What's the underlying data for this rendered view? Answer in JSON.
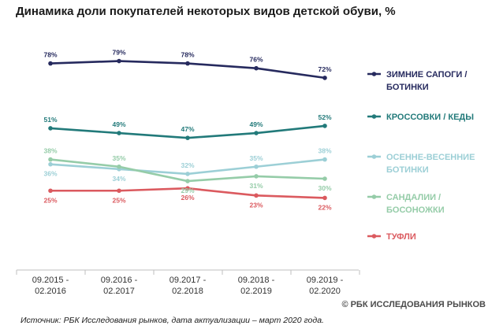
{
  "title": "Динамика доли покупателей некоторых видов детской обуви, %",
  "copyright": "© РБК ИССЛЕДОВАНИЯ РЫНКОВ",
  "source": "Источник: РБК Исследования рынков, дата актуализации – март 2020 года.",
  "chart_data": {
    "type": "line",
    "title": "Динамика доли покупателей некоторых видов детской обуви, %",
    "xlabel": "",
    "ylabel": "",
    "ylim": [
      0,
      100
    ],
    "grid": false,
    "legend_position": "right",
    "categories": [
      [
        "09.2015 -",
        "02.2016"
      ],
      [
        "09.2016 -",
        "02.2017"
      ],
      [
        "09.2017 -",
        "02.2018"
      ],
      [
        "09.2018 -",
        "02.2019"
      ],
      [
        "09.2019 -",
        "02.2020"
      ]
    ],
    "series": [
      {
        "name_lines": [
          "ЗИМНИЕ САПОГИ /",
          "БОТИНКИ"
        ],
        "color": "#262a5e",
        "values": [
          78,
          79,
          78,
          76,
          72
        ],
        "label_pos": [
          "above",
          "above",
          "above",
          "above",
          "above"
        ]
      },
      {
        "name_lines": [
          "КРОССОВКИ / КЕДЫ"
        ],
        "color": "#227a7a",
        "values": [
          51,
          49,
          47,
          49,
          52
        ],
        "label_pos": [
          "above",
          "above",
          "above",
          "above",
          "above"
        ]
      },
      {
        "name_lines": [
          "ОСЕННЕ-ВЕСЕННИЕ",
          "БОТИНКИ"
        ],
        "color": "#9ccfd6",
        "values": [
          36,
          34,
          32,
          35,
          38
        ],
        "label_pos": [
          "below",
          "below",
          "above",
          "above",
          "above"
        ]
      },
      {
        "name_lines": [
          "САНДАЛИИ /",
          "БОСОНОЖКИ"
        ],
        "color": "#95cca8",
        "values": [
          38,
          35,
          29,
          31,
          30
        ],
        "label_pos": [
          "above",
          "above",
          "below",
          "below",
          "below"
        ]
      },
      {
        "name_lines": [
          "ТУФЛИ"
        ],
        "color": "#db5a5f",
        "values": [
          25,
          25,
          26,
          23,
          22
        ],
        "label_pos": [
          "below",
          "below",
          "below",
          "below",
          "below"
        ]
      }
    ]
  }
}
